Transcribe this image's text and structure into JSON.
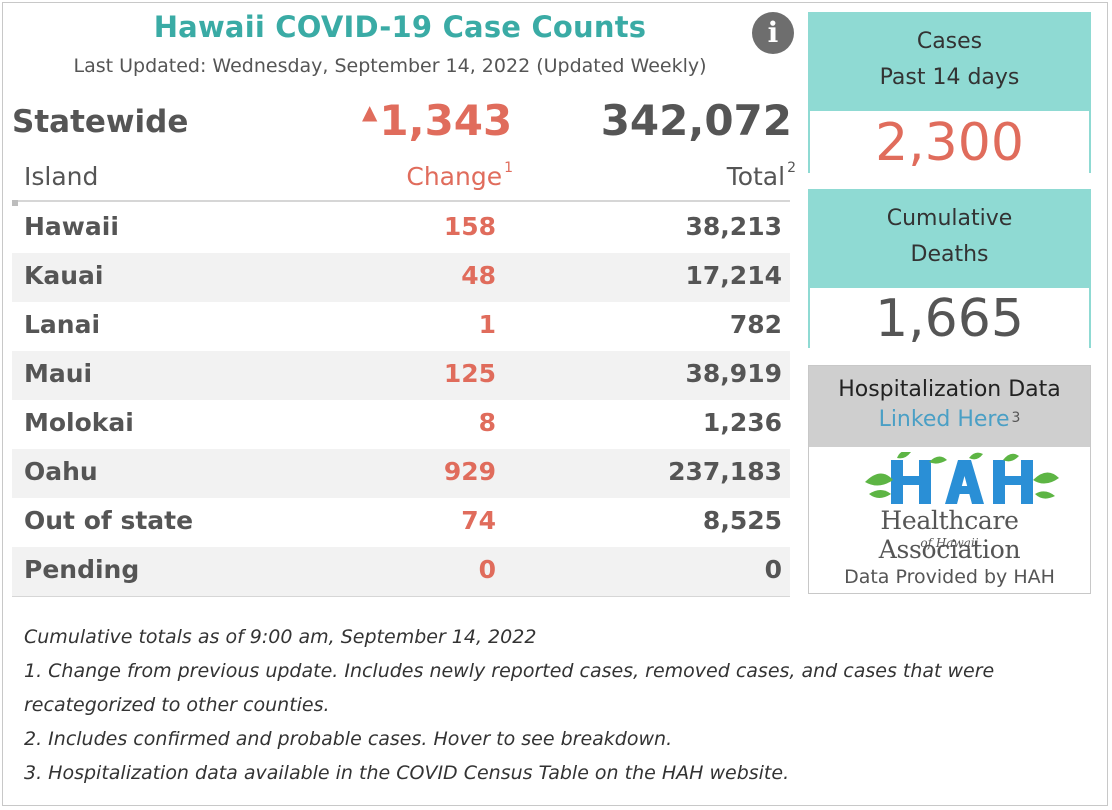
{
  "header": {
    "title": "Hawaii COVID-19 Case Counts",
    "subtitle": "Last Updated: Wednesday, September 14, 2022 (Updated Weekly)",
    "info_icon": "info-icon"
  },
  "statewide": {
    "label": "Statewide",
    "change": "1,343",
    "total": "342,072",
    "change_indicator_icon": "up-triangle-icon"
  },
  "table": {
    "headers": {
      "island": "Island",
      "change": "Change",
      "change_note": "1",
      "total": "Total",
      "total_note": "2"
    },
    "rows": [
      {
        "island": "Hawaii",
        "change": "158",
        "total": "38,213"
      },
      {
        "island": "Kauai",
        "change": "48",
        "total": "17,214"
      },
      {
        "island": "Lanai",
        "change": "1",
        "total": "782"
      },
      {
        "island": "Maui",
        "change": "125",
        "total": "38,919"
      },
      {
        "island": "Molokai",
        "change": "8",
        "total": "1,236"
      },
      {
        "island": "Oahu",
        "change": "929",
        "total": "237,183"
      },
      {
        "island": "Out of state",
        "change": "74",
        "total": "8,525"
      },
      {
        "island": "Pending",
        "change": "0",
        "total": "0"
      }
    ]
  },
  "cases_panel": {
    "line1": "Cases",
    "line2": "Past 14 days",
    "value": "2,300"
  },
  "deaths_panel": {
    "line1": "Cumulative",
    "line2": "Deaths",
    "value": "1,665"
  },
  "hospitalization": {
    "title": "Hospitalization Data",
    "link": "Linked Here",
    "link_note": "3",
    "logo_mark": "HAH",
    "logo_name": "Healthcare Association",
    "logo_sub": "of Hawaii",
    "provided": "Data Provided by HAH"
  },
  "footnotes": [
    "Cumulative totals as of 9:00 am, September 14, 2022",
    "1. Change from previous update. Includes newly reported cases, removed cases, and cases that were",
    "recategorized to other counties.",
    "2. Includes confirmed and probable cases. Hover to see breakdown.",
    "3. Hospitalization data available in the COVID Census Table on the HAH website."
  ],
  "colors": {
    "teal": "#3aaba5",
    "panel_teal": "#8fdad3",
    "change_red": "#e06c5c",
    "link_blue": "#4a9fc5"
  }
}
